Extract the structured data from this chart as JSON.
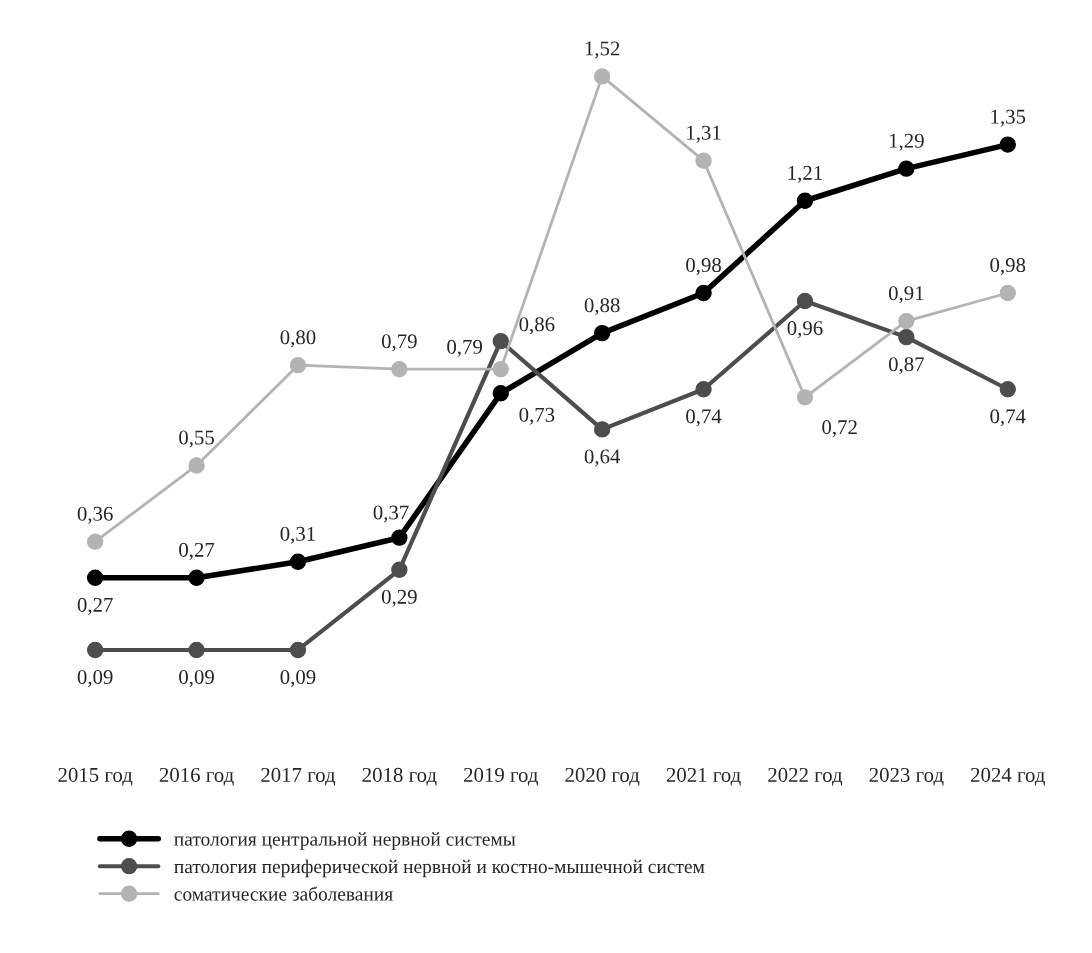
{
  "chart_data": {
    "type": "line",
    "categories": [
      "2015 год",
      "2016 год",
      "2017 год",
      "2018 год",
      "2019 год",
      "2020 год",
      "2021 год",
      "2022 год",
      "2023 год",
      "2024 год"
    ],
    "series": [
      {
        "name": "патология центральной нервной системы",
        "color": "#000000",
        "values": [
          0.27,
          0.27,
          0.31,
          0.37,
          0.73,
          0.88,
          0.98,
          1.21,
          1.29,
          1.35
        ],
        "value_labels": [
          "0,27",
          "0,27",
          "0,31",
          "0,37",
          "0,73",
          "0,88",
          "0,98",
          "1,21",
          "1,29",
          "1,35"
        ]
      },
      {
        "name": "патология периферической нервной и костно-мышечной систем",
        "color": "#4d4d4d",
        "values": [
          0.09,
          0.09,
          0.09,
          0.29,
          0.86,
          0.64,
          0.74,
          0.96,
          0.87,
          0.74
        ],
        "value_labels": [
          "0,09",
          "0,09",
          "0,09",
          "0,29",
          "0,86",
          "0,64",
          "0,74",
          "0,96",
          "0,87",
          "0,74"
        ]
      },
      {
        "name": "соматические заболевания",
        "color": "#b3b3b3",
        "values": [
          0.36,
          0.55,
          0.8,
          0.79,
          0.79,
          1.52,
          1.31,
          0.72,
          0.91,
          0.98
        ],
        "value_labels": [
          "0,36",
          "0,55",
          "0,80",
          "0,79",
          "0,79",
          "1,52",
          "1,31",
          "0,72",
          "0,91",
          "0,98"
        ]
      }
    ],
    "marker": "circle",
    "line_style": "solid",
    "grid": false,
    "legend": "bottom",
    "tick_labels": "x"
  }
}
